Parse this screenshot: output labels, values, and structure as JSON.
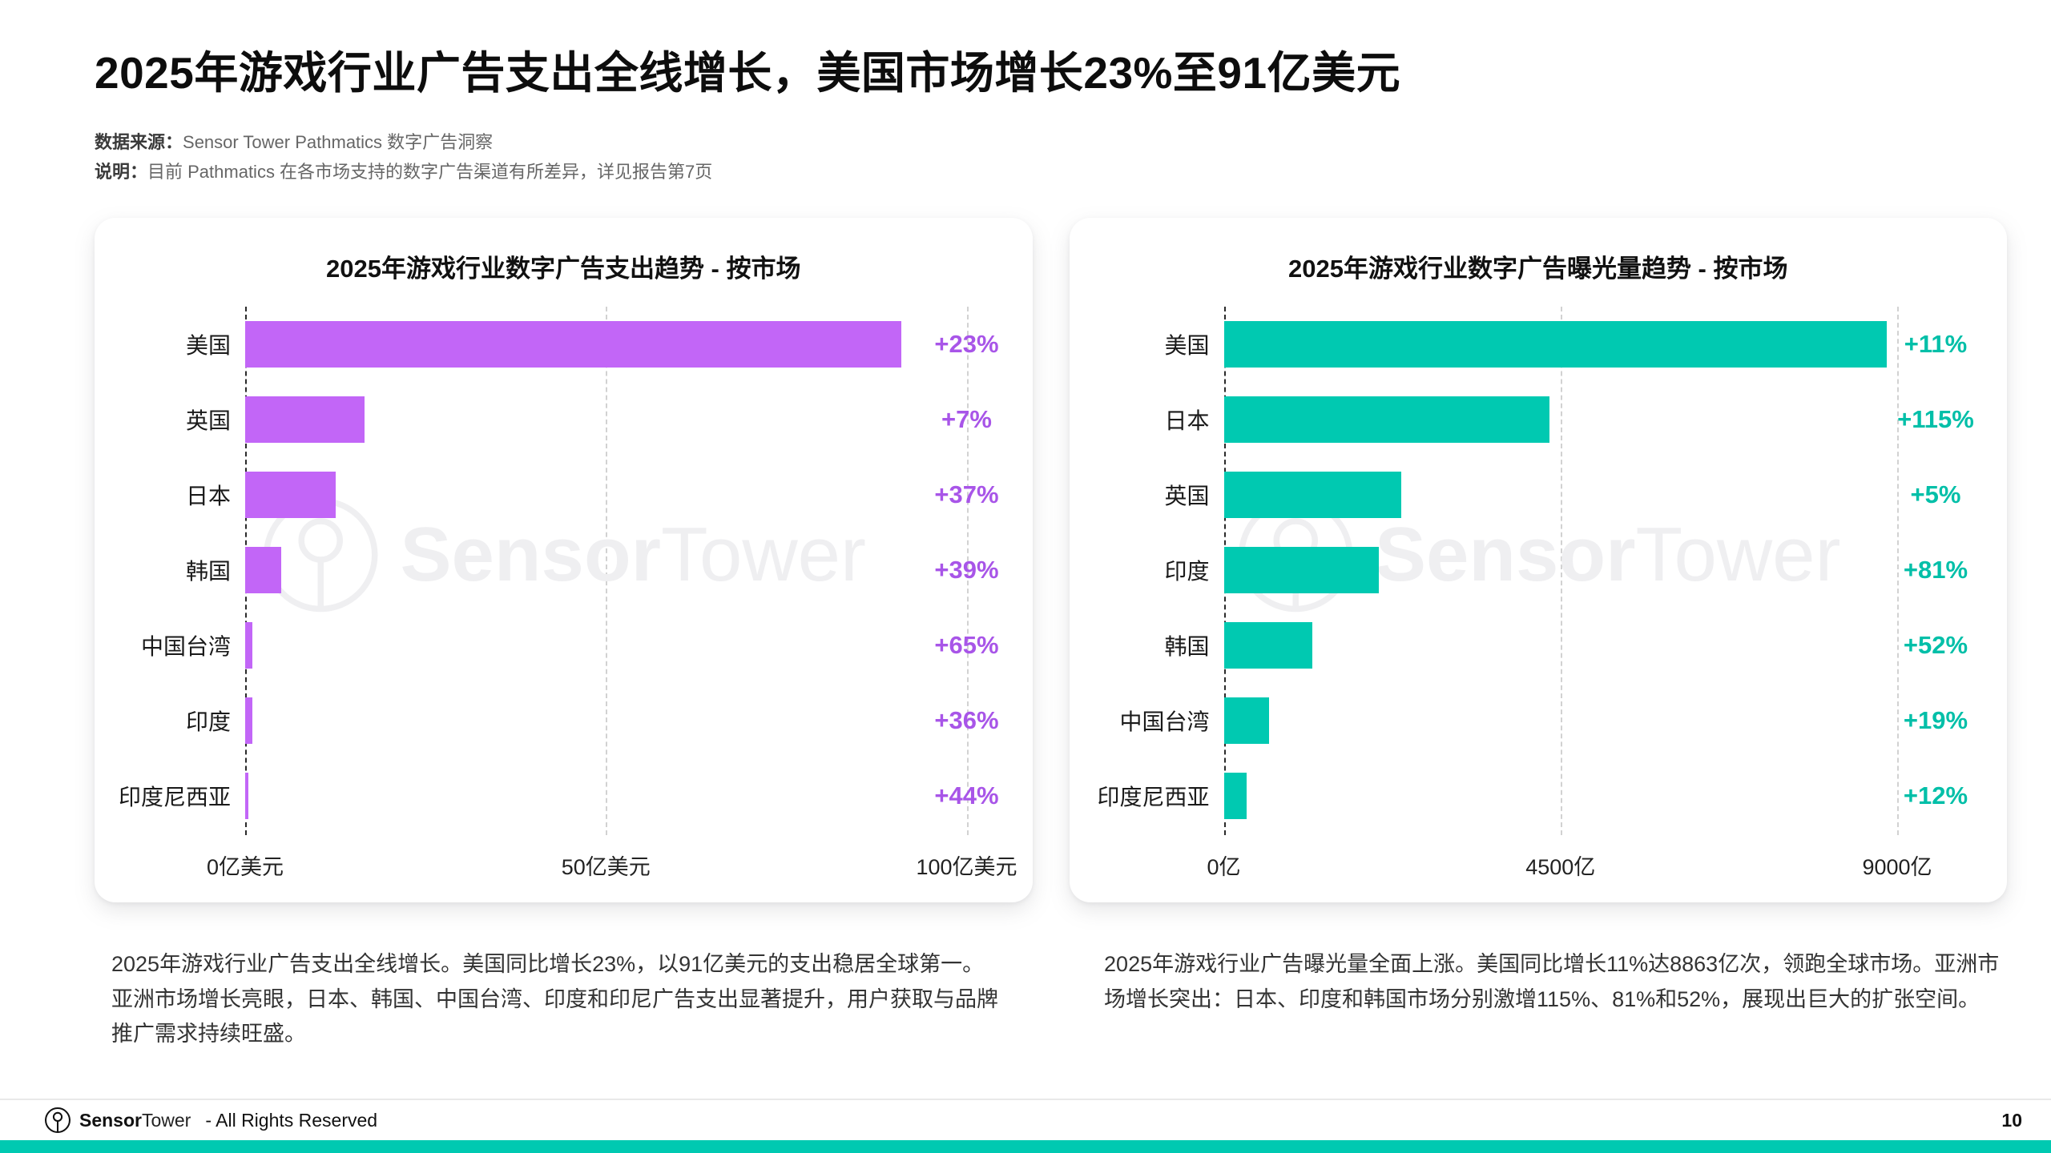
{
  "page": {
    "title": "2025年游戏行业广告支出全线增长，美国市场增长23%至91亿美元",
    "source_label": "数据来源：",
    "source_text": "Sensor Tower Pathmatics 数字广告洞察",
    "note_label": "说明：",
    "note_text": "目前 Pathmatics 在各市场支持的数字广告渠道有所差异，详见报告第7页",
    "page_number": "10",
    "footer": {
      "brand_bold": "Sensor",
      "brand_light": "Tower",
      "rights": "- All Rights Reserved"
    },
    "watermark": {
      "bold": "Sensor",
      "light": "Tower"
    }
  },
  "colors": {
    "purple_bar": "#c266f7",
    "purple_pct": "#a855e8",
    "teal_bar": "#00c9b1",
    "teal_pct": "#00bfa8",
    "bottom_strip": "#00c9b1"
  },
  "chart_data": [
    {
      "type": "bar",
      "orientation": "horizontal",
      "title": "2025年游戏行业数字广告支出趋势 - 按市场",
      "categories": [
        "美国",
        "英国",
        "日本",
        "韩国",
        "中国台湾",
        "印度",
        "印度尼西亚"
      ],
      "values": [
        91,
        16.5,
        12.5,
        5,
        1,
        1,
        0.4
      ],
      "unit": "亿美元",
      "growth_labels": [
        "+23%",
        "+7%",
        "+37%",
        "+39%",
        "+65%",
        "+36%",
        "+44%"
      ],
      "x_ticks": [
        "0亿美元",
        "50亿美元",
        "100亿美元"
      ],
      "xlim": [
        0,
        100
      ],
      "grid": "dashed-vertical",
      "bar_color": "#c266f7",
      "pct_color": "#a855e8"
    },
    {
      "type": "bar",
      "orientation": "horizontal",
      "title": "2025年游戏行业数字广告曝光量趋势 - 按市场",
      "categories": [
        "美国",
        "日本",
        "英国",
        "印度",
        "韩国",
        "中国台湾",
        "印度尼西亚"
      ],
      "values": [
        8863,
        4350,
        2370,
        2070,
        1180,
        600,
        300
      ],
      "unit": "亿",
      "growth_labels": [
        "+11%",
        "+115%",
        "+5%",
        "+81%",
        "+52%",
        "+19%",
        "+12%"
      ],
      "x_ticks": [
        "0亿",
        "4500亿",
        "9000亿"
      ],
      "xlim": [
        0,
        9000
      ],
      "grid": "dashed-vertical",
      "bar_color": "#00c9b1",
      "pct_color": "#00bfa8"
    }
  ],
  "paragraphs": {
    "left": "2025年游戏行业广告支出全线增长。美国同比增长23%，以91亿美元的支出稳居全球第一。亚洲市场增长亮眼，日本、韩国、中国台湾、印度和印尼广告支出显著提升，用户获取与品牌推广需求持续旺盛。",
    "right": "2025年游戏行业广告曝光量全面上涨。美国同比增长11%达8863亿次，领跑全球市场。亚洲市场增长突出：日本、印度和韩国市场分别激增115%、81%和52%，展现出巨大的扩张空间。"
  }
}
